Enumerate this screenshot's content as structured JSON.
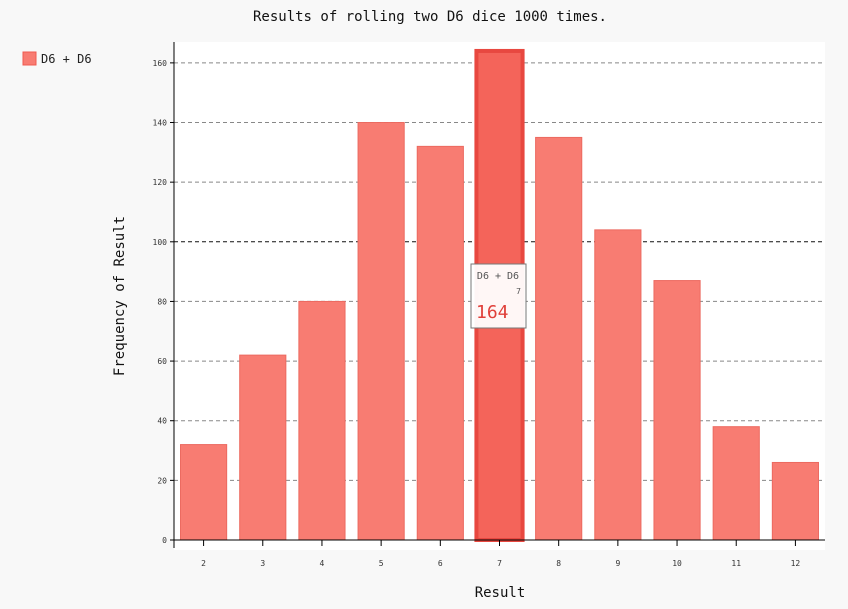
{
  "chart_data": {
    "type": "bar",
    "title": "Results of rolling two D6 dice 1000 times.",
    "xlabel": "Result",
    "ylabel": "Frequency of Result",
    "categories": [
      "2",
      "3",
      "4",
      "5",
      "6",
      "7",
      "8",
      "9",
      "10",
      "11",
      "12"
    ],
    "series": [
      {
        "name": "D6 + D6",
        "values": [
          32,
          62,
          80,
          140,
          132,
          164,
          135,
          104,
          87,
          38,
          26
        ],
        "color": "#f87c72"
      }
    ],
    "ylim": [
      0,
      167
    ],
    "yticks": [
      0,
      20,
      40,
      60,
      80,
      100,
      120,
      140,
      160
    ],
    "major_ytick": 100,
    "grid": true,
    "legend_position": "top-left",
    "highlight": {
      "category": "7",
      "series": "D6 + D6",
      "value": "164",
      "color": "#f4645a"
    }
  }
}
